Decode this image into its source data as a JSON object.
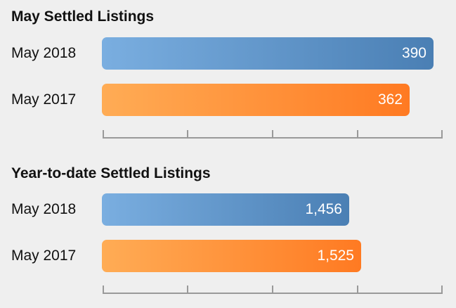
{
  "chart_data": [
    {
      "type": "bar",
      "orientation": "horizontal",
      "title": "May Settled Listings",
      "categories": [
        "May 2018",
        "May 2017"
      ],
      "values": [
        390,
        362
      ],
      "value_labels": [
        "390",
        "362"
      ],
      "xlim": [
        0,
        400
      ],
      "colors": [
        "#4a7fb4",
        "#ff7a22"
      ]
    },
    {
      "type": "bar",
      "orientation": "horizontal",
      "title": "Year-to-date Settled Listings",
      "categories": [
        "May 2018",
        "May 2017"
      ],
      "values": [
        1456,
        1525
      ],
      "value_labels": [
        "1,456",
        "1,525"
      ],
      "xlim": [
        0,
        2000
      ],
      "colors": [
        "#4a7fb4",
        "#ff7a22"
      ]
    }
  ]
}
